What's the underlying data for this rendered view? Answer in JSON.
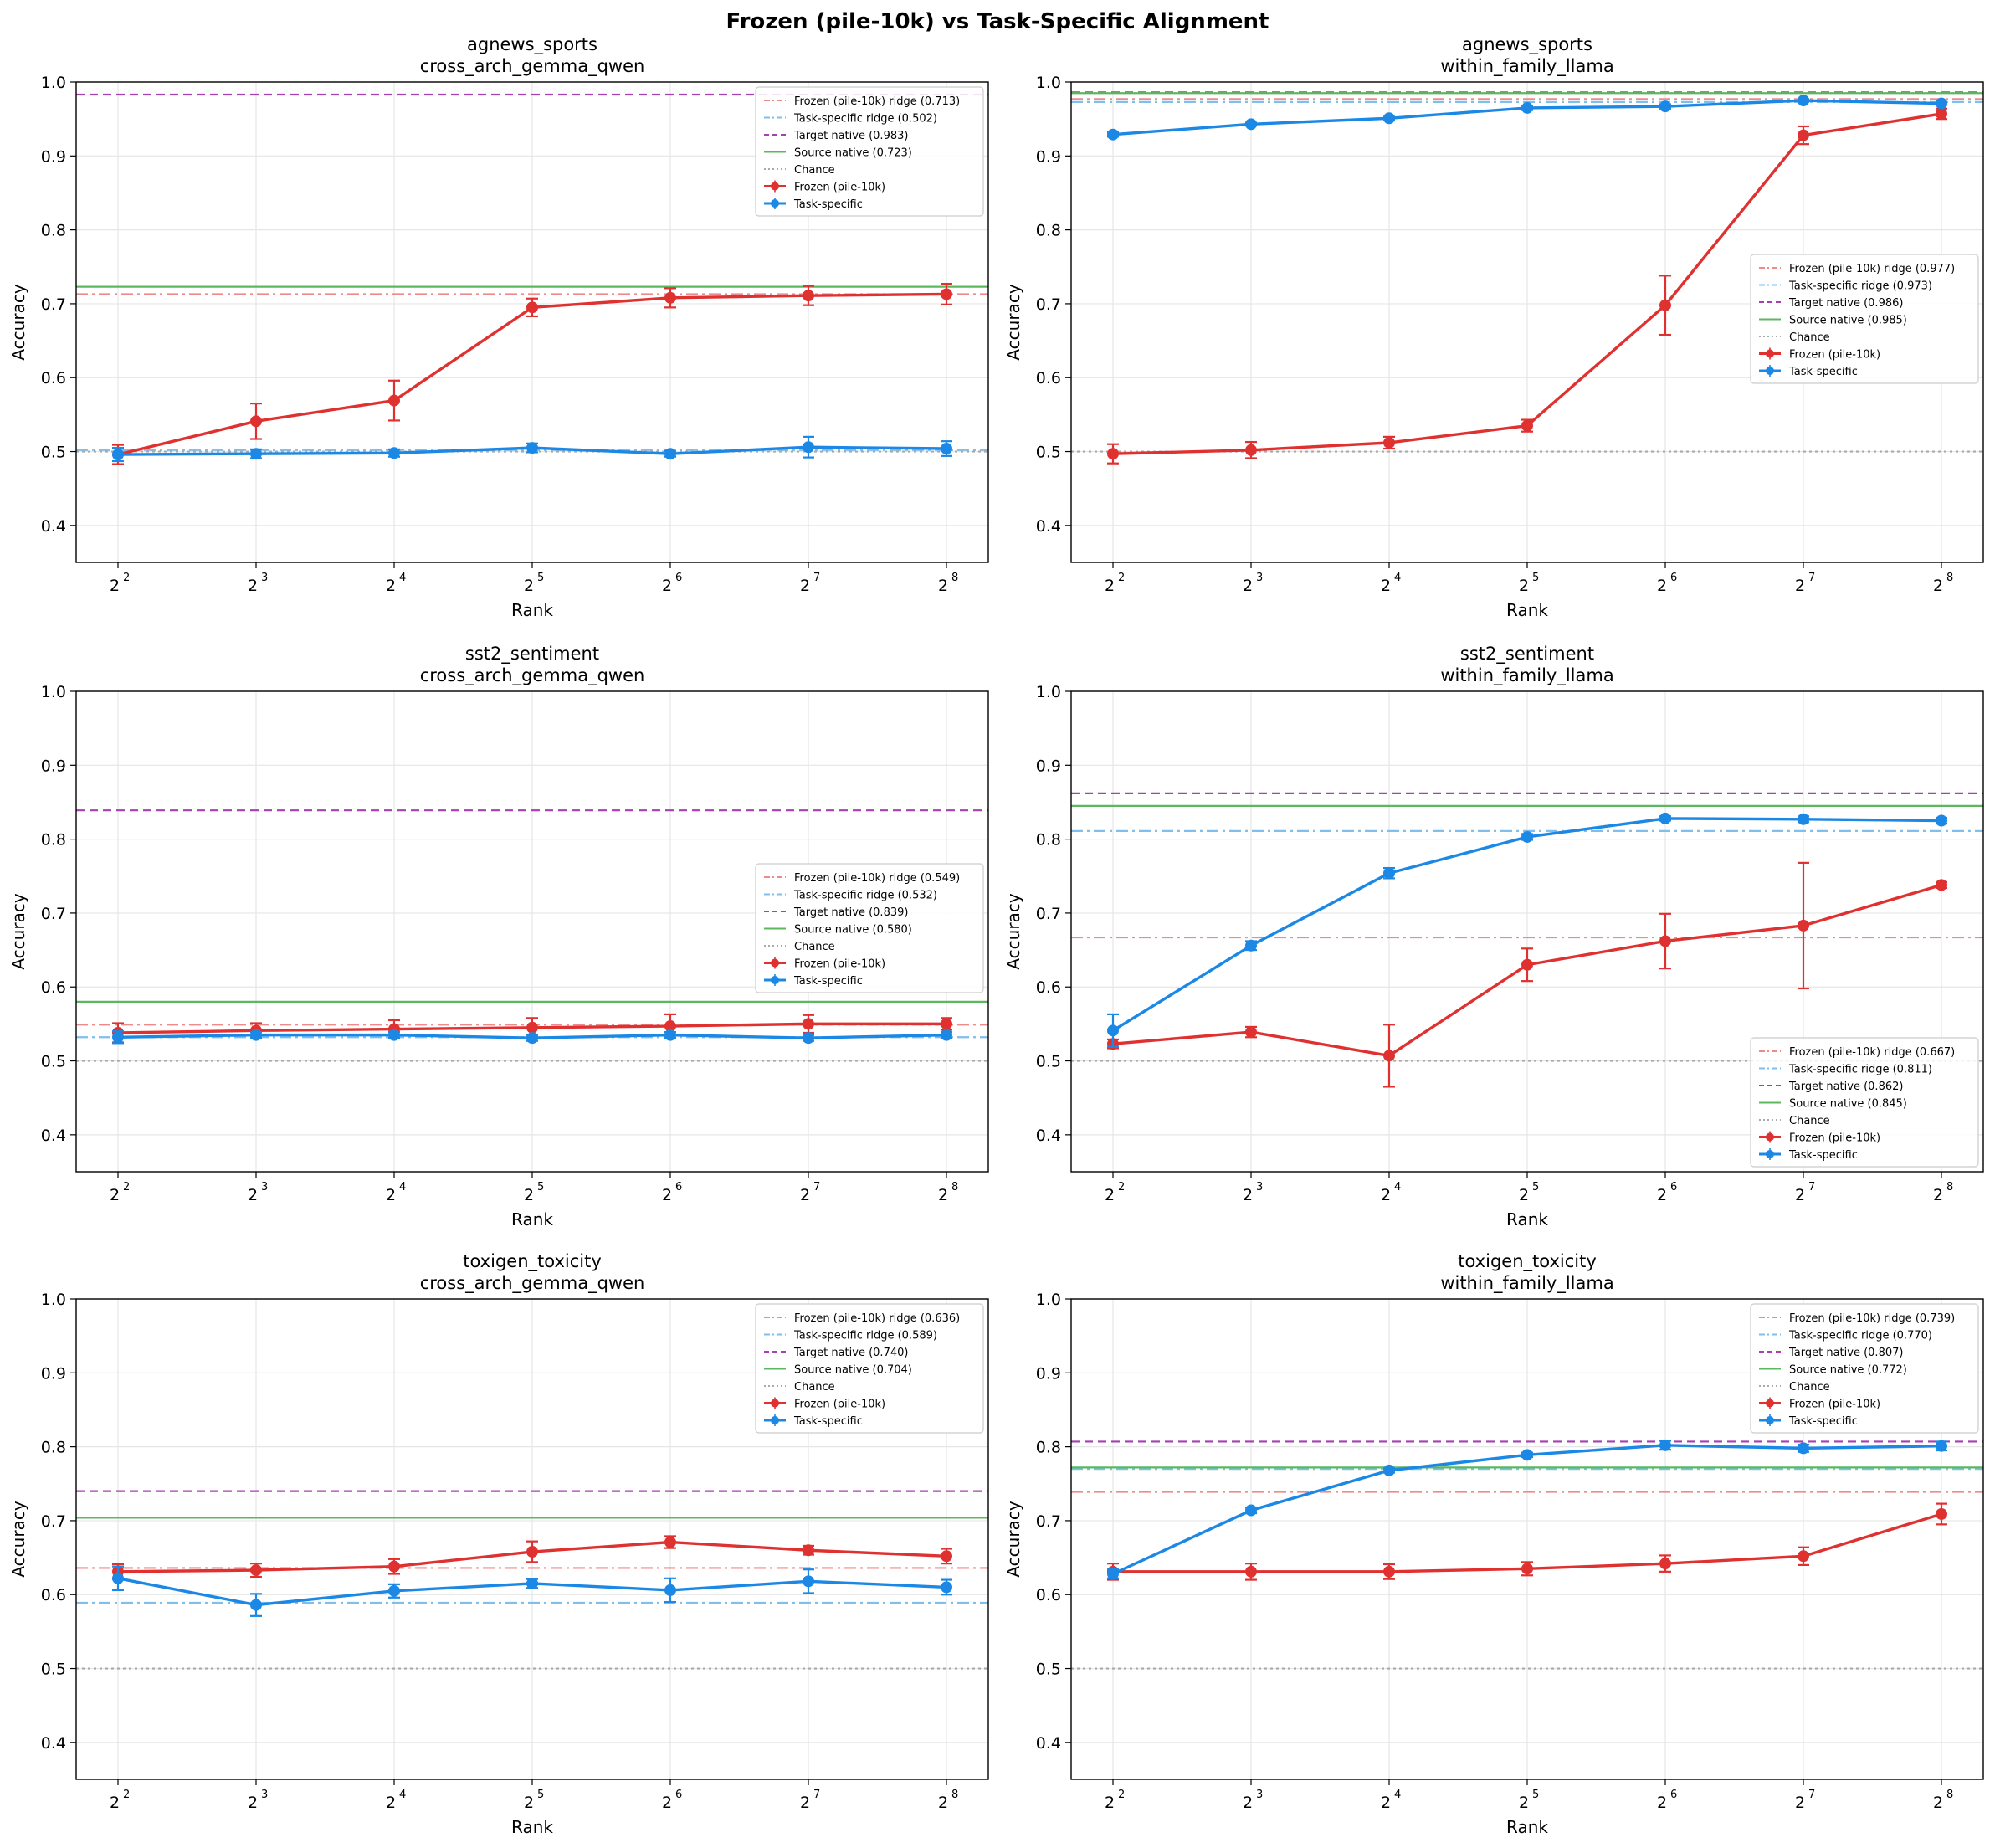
{
  "figure_title": "Frozen (pile-10k) vs Task-Specific Alignment",
  "colors": {
    "frozen": "#e03131",
    "task": "#1c88e5",
    "frozen_ridge": "#f08a8a",
    "task_ridge": "#7ebfee",
    "target_native": "#a63fb0",
    "source_native": "#5cb85c",
    "chance": "#aaaaaa"
  },
  "chart_data": [
    {
      "type": "line",
      "title_line1": "agnews_sports",
      "title_line2": "cross_arch_gemma_qwen",
      "xlabel": "Rank",
      "ylabel": "Accuracy",
      "x_base": "2",
      "x_exponents": [
        "2",
        "3",
        "4",
        "5",
        "6",
        "7",
        "8"
      ],
      "ylim": [
        0.35,
        1.0
      ],
      "yticks": [
        "0.4",
        "0.5",
        "0.6",
        "0.7",
        "0.8",
        "0.9",
        "1.0"
      ],
      "legend_position": "upper-right",
      "legend": [
        "Frozen (pile-10k) ridge (0.713)",
        "Task-specific ridge (0.502)",
        "Target native (0.983)",
        "Source native (0.723)",
        "Chance",
        "Frozen (pile-10k)",
        "Task-specific"
      ],
      "reference_lines": {
        "frozen_ridge": 0.713,
        "task_ridge": 0.502,
        "target_native": 0.983,
        "source_native": 0.723,
        "chance": 0.5
      },
      "series": [
        {
          "name": "Frozen (pile-10k)",
          "values": [
            0.496,
            0.541,
            0.569,
            0.695,
            0.708,
            0.711,
            0.713
          ],
          "errors": [
            0.013,
            0.024,
            0.027,
            0.012,
            0.013,
            0.013,
            0.014
          ]
        },
        {
          "name": "Task-specific",
          "values": [
            0.496,
            0.497,
            0.498,
            0.505,
            0.497,
            0.506,
            0.504
          ],
          "errors": [
            0.009,
            0.006,
            0.005,
            0.006,
            0.004,
            0.014,
            0.01
          ]
        }
      ]
    },
    {
      "type": "line",
      "title_line1": "agnews_sports",
      "title_line2": "within_family_llama",
      "xlabel": "Rank",
      "ylabel": "Accuracy",
      "x_base": "2",
      "x_exponents": [
        "2",
        "3",
        "4",
        "5",
        "6",
        "7",
        "8"
      ],
      "ylim": [
        0.35,
        1.0
      ],
      "yticks": [
        "0.4",
        "0.5",
        "0.6",
        "0.7",
        "0.8",
        "0.9",
        "1.0"
      ],
      "legend_position": "center-right",
      "legend": [
        "Frozen (pile-10k) ridge (0.977)",
        "Task-specific ridge (0.973)",
        "Target native (0.986)",
        "Source native (0.985)",
        "Chance",
        "Frozen (pile-10k)",
        "Task-specific"
      ],
      "reference_lines": {
        "frozen_ridge": 0.977,
        "task_ridge": 0.973,
        "target_native": 0.986,
        "source_native": 0.985,
        "chance": 0.5
      },
      "series": [
        {
          "name": "Frozen (pile-10k)",
          "values": [
            0.497,
            0.502,
            0.512,
            0.535,
            0.698,
            0.928,
            0.957
          ],
          "errors": [
            0.013,
            0.011,
            0.008,
            0.008,
            0.04,
            0.012,
            0.007
          ]
        },
        {
          "name": "Task-specific",
          "values": [
            0.929,
            0.943,
            0.951,
            0.965,
            0.967,
            0.975,
            0.971
          ],
          "errors": [
            0.003,
            0.002,
            0.002,
            0.003,
            0.003,
            0.002,
            0.002
          ]
        }
      ]
    },
    {
      "type": "line",
      "title_line1": "sst2_sentiment",
      "title_line2": "cross_arch_gemma_qwen",
      "xlabel": "Rank",
      "ylabel": "Accuracy",
      "x_base": "2",
      "x_exponents": [
        "2",
        "3",
        "4",
        "5",
        "6",
        "7",
        "8"
      ],
      "ylim": [
        0.35,
        1.0
      ],
      "yticks": [
        "0.4",
        "0.5",
        "0.6",
        "0.7",
        "0.8",
        "0.9",
        "1.0"
      ],
      "legend_position": "center-right",
      "legend": [
        "Frozen (pile-10k) ridge (0.549)",
        "Task-specific ridge (0.532)",
        "Target native (0.839)",
        "Source native (0.580)",
        "Chance",
        "Frozen (pile-10k)",
        "Task-specific"
      ],
      "reference_lines": {
        "frozen_ridge": 0.549,
        "task_ridge": 0.532,
        "target_native": 0.839,
        "source_native": 0.58,
        "chance": 0.5
      },
      "series": [
        {
          "name": "Frozen (pile-10k)",
          "values": [
            0.538,
            0.541,
            0.543,
            0.545,
            0.547,
            0.55,
            0.55
          ],
          "errors": [
            0.013,
            0.01,
            0.012,
            0.013,
            0.016,
            0.012,
            0.008
          ]
        },
        {
          "name": "Task-specific",
          "values": [
            0.532,
            0.535,
            0.535,
            0.531,
            0.535,
            0.531,
            0.535
          ],
          "errors": [
            0.008,
            0.004,
            0.004,
            0.004,
            0.004,
            0.004,
            0.004
          ]
        }
      ]
    },
    {
      "type": "line",
      "title_line1": "sst2_sentiment",
      "title_line2": "within_family_llama",
      "xlabel": "Rank",
      "ylabel": "Accuracy",
      "x_base": "2",
      "x_exponents": [
        "2",
        "3",
        "4",
        "5",
        "6",
        "7",
        "8"
      ],
      "ylim": [
        0.35,
        1.0
      ],
      "yticks": [
        "0.4",
        "0.5",
        "0.6",
        "0.7",
        "0.8",
        "0.9",
        "1.0"
      ],
      "legend_position": "lower-right",
      "legend": [
        "Frozen (pile-10k) ridge (0.667)",
        "Task-specific ridge (0.811)",
        "Target native (0.862)",
        "Source native (0.845)",
        "Chance",
        "Frozen (pile-10k)",
        "Task-specific"
      ],
      "reference_lines": {
        "frozen_ridge": 0.667,
        "task_ridge": 0.811,
        "target_native": 0.862,
        "source_native": 0.845,
        "chance": 0.5
      },
      "series": [
        {
          "name": "Frozen (pile-10k)",
          "values": [
            0.523,
            0.539,
            0.507,
            0.63,
            0.662,
            0.683,
            0.738
          ],
          "errors": [
            0.006,
            0.007,
            0.042,
            0.022,
            0.037,
            0.085,
            0.004
          ]
        },
        {
          "name": "Task-specific",
          "values": [
            0.541,
            0.656,
            0.754,
            0.803,
            0.828,
            0.827,
            0.825
          ],
          "errors": [
            0.022,
            0.006,
            0.007,
            0.004,
            0.003,
            0.004,
            0.004
          ]
        }
      ]
    },
    {
      "type": "line",
      "title_line1": "toxigen_toxicity",
      "title_line2": "cross_arch_gemma_qwen",
      "xlabel": "Rank",
      "ylabel": "Accuracy",
      "x_base": "2",
      "x_exponents": [
        "2",
        "3",
        "4",
        "5",
        "6",
        "7",
        "8"
      ],
      "ylim": [
        0.35,
        1.0
      ],
      "yticks": [
        "0.4",
        "0.5",
        "0.6",
        "0.7",
        "0.8",
        "0.9",
        "1.0"
      ],
      "legend_position": "upper-right",
      "legend": [
        "Frozen (pile-10k) ridge (0.636)",
        "Task-specific ridge (0.589)",
        "Target native (0.740)",
        "Source native (0.704)",
        "Chance",
        "Frozen (pile-10k)",
        "Task-specific"
      ],
      "reference_lines": {
        "frozen_ridge": 0.636,
        "task_ridge": 0.589,
        "target_native": 0.74,
        "source_native": 0.704,
        "chance": 0.5
      },
      "series": [
        {
          "name": "Frozen (pile-10k)",
          "values": [
            0.631,
            0.633,
            0.638,
            0.658,
            0.671,
            0.66,
            0.652
          ],
          "errors": [
            0.01,
            0.009,
            0.01,
            0.014,
            0.008,
            0.006,
            0.01
          ]
        },
        {
          "name": "Task-specific",
          "values": [
            0.622,
            0.586,
            0.605,
            0.615,
            0.606,
            0.618,
            0.61
          ],
          "errors": [
            0.016,
            0.015,
            0.009,
            0.006,
            0.016,
            0.016,
            0.01
          ]
        }
      ]
    },
    {
      "type": "line",
      "title_line1": "toxigen_toxicity",
      "title_line2": "within_family_llama",
      "xlabel": "Rank",
      "ylabel": "Accuracy",
      "x_base": "2",
      "x_exponents": [
        "2",
        "3",
        "4",
        "5",
        "6",
        "7",
        "8"
      ],
      "ylim": [
        0.35,
        1.0
      ],
      "yticks": [
        "0.4",
        "0.5",
        "0.6",
        "0.7",
        "0.8",
        "0.9",
        "1.0"
      ],
      "legend_position": "upper-right",
      "legend": [
        "Frozen (pile-10k) ridge (0.739)",
        "Task-specific ridge (0.770)",
        "Target native (0.807)",
        "Source native (0.772)",
        "Chance",
        "Frozen (pile-10k)",
        "Task-specific"
      ],
      "reference_lines": {
        "frozen_ridge": 0.739,
        "task_ridge": 0.77,
        "target_native": 0.807,
        "source_native": 0.772,
        "chance": 0.5
      },
      "series": [
        {
          "name": "Frozen (pile-10k)",
          "values": [
            0.631,
            0.631,
            0.631,
            0.635,
            0.642,
            0.652,
            0.709
          ],
          "errors": [
            0.011,
            0.011,
            0.01,
            0.009,
            0.011,
            0.012,
            0.014
          ]
        },
        {
          "name": "Task-specific",
          "values": [
            0.628,
            0.714,
            0.768,
            0.789,
            0.802,
            0.798,
            0.801
          ],
          "errors": [
            0.006,
            0.004,
            0.003,
            0.003,
            0.006,
            0.005,
            0.006
          ]
        }
      ]
    }
  ]
}
